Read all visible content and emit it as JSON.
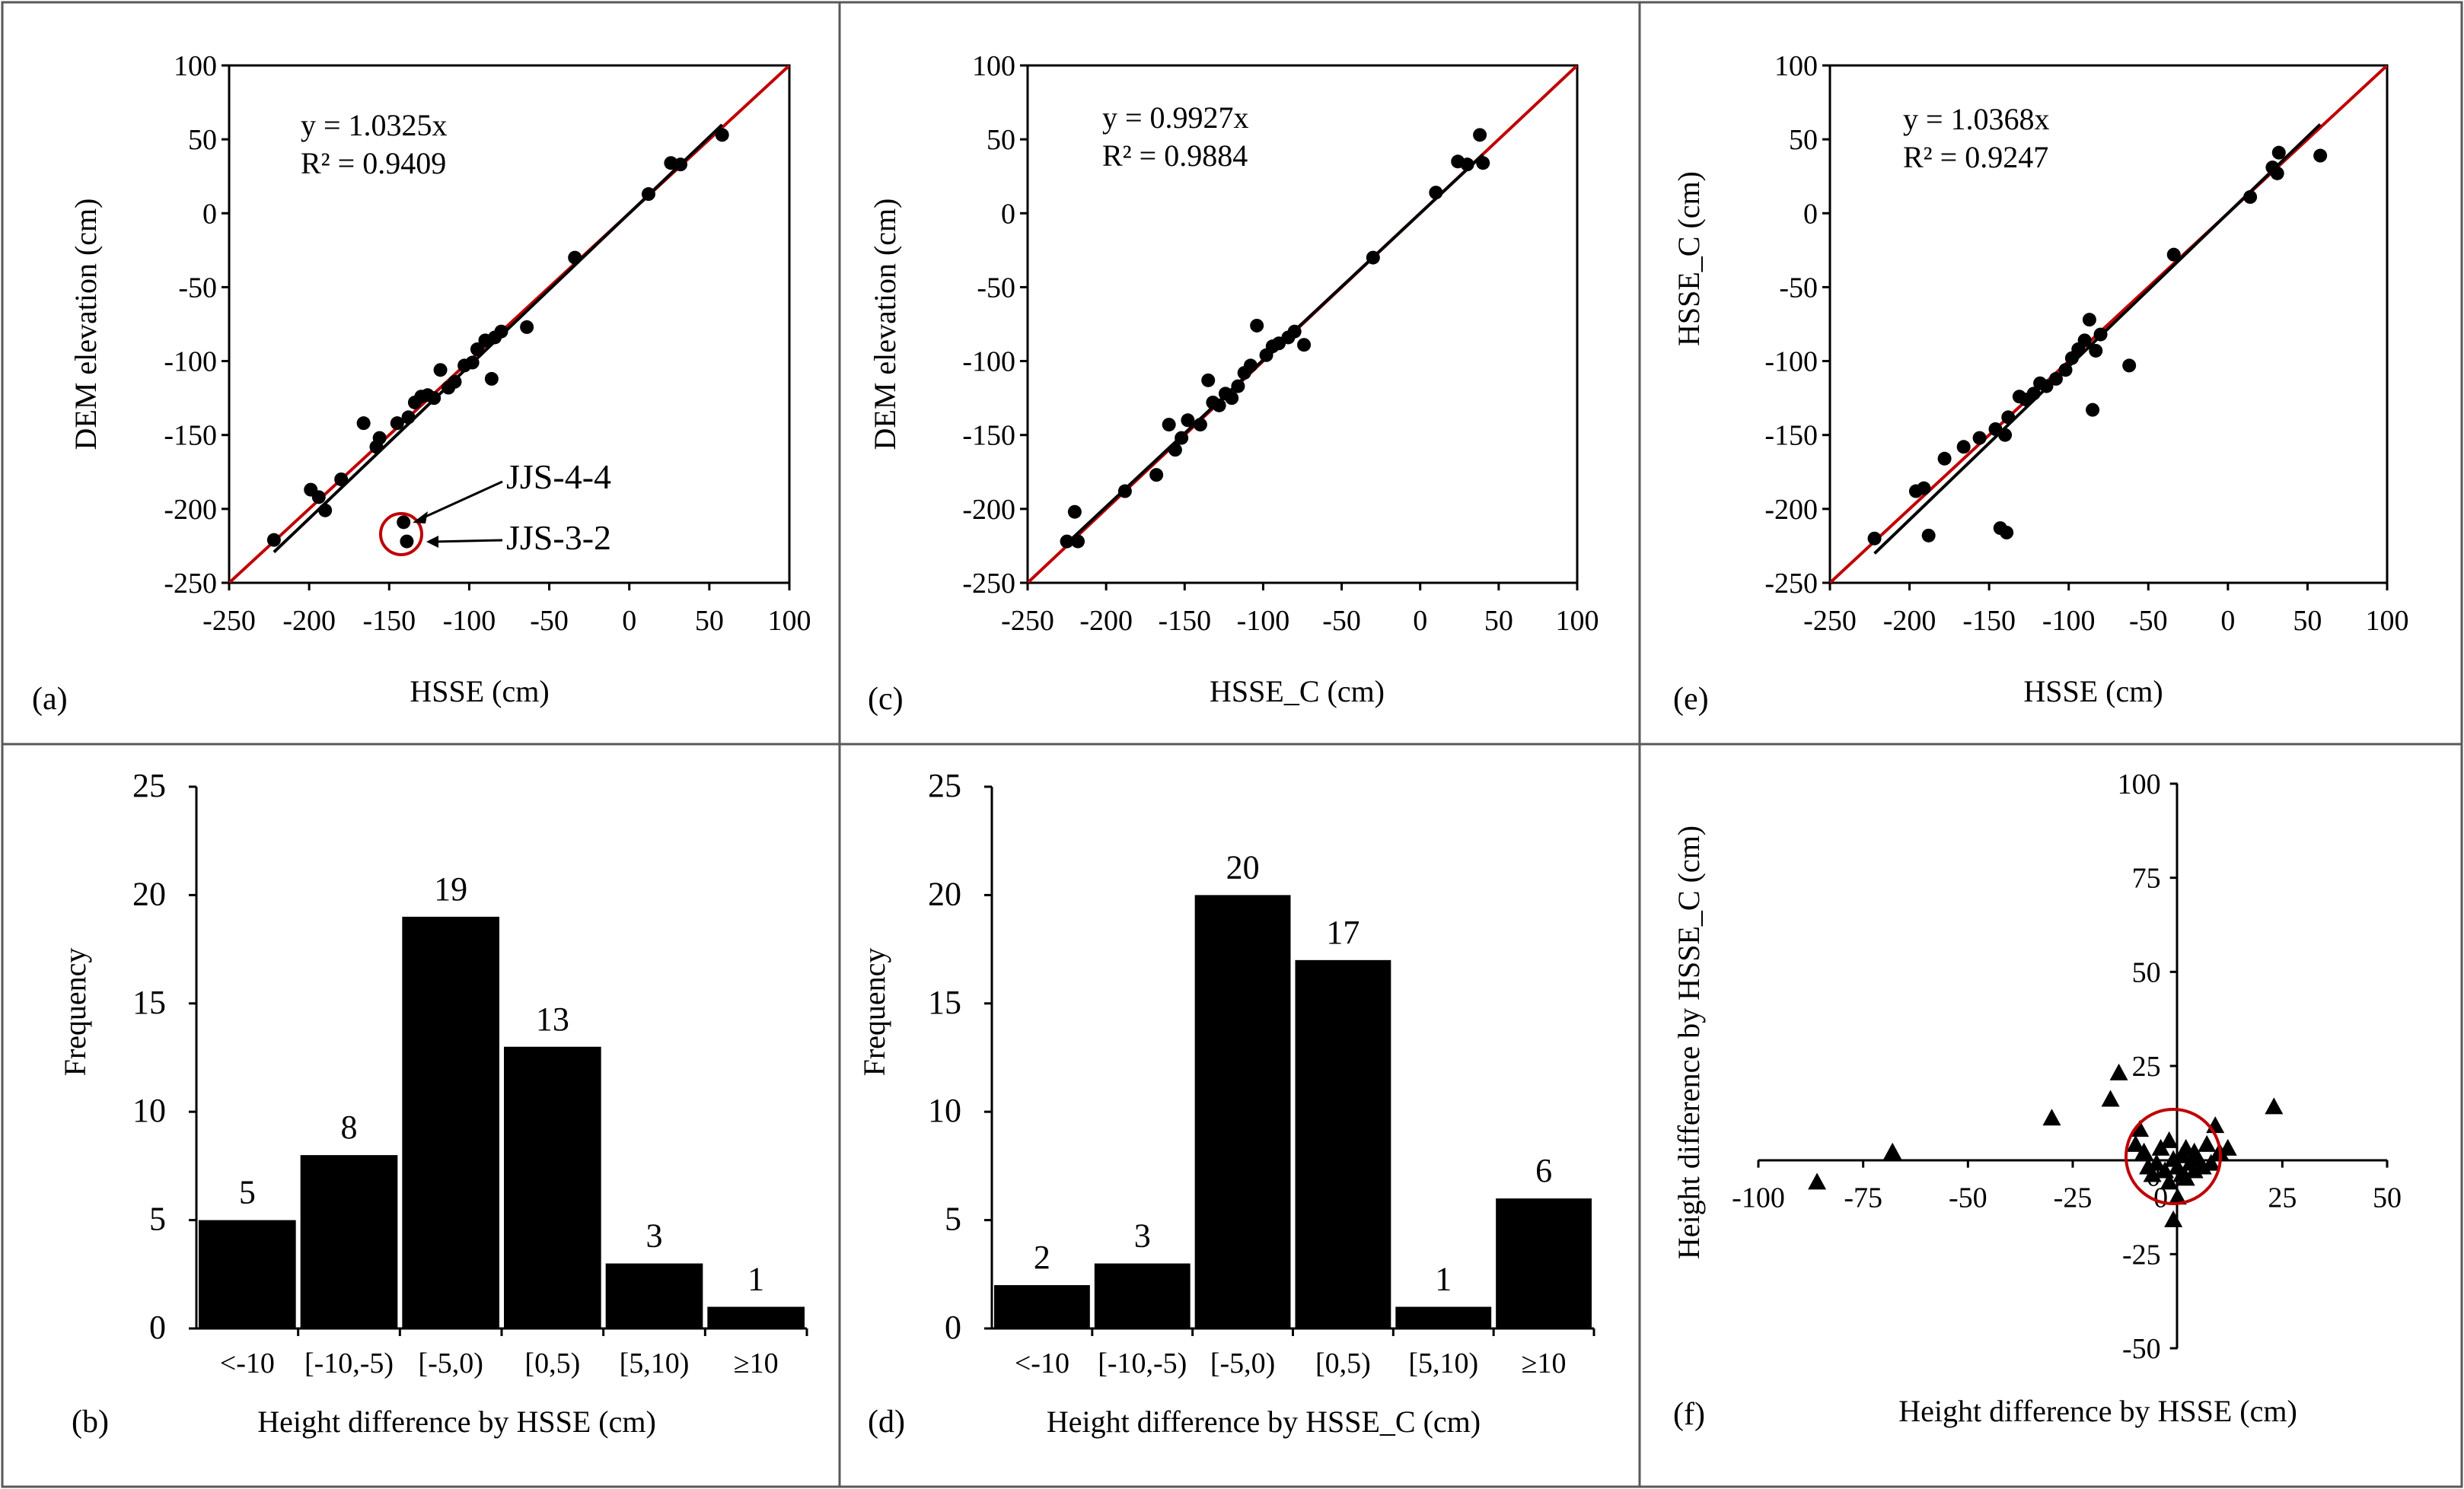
{
  "colors": {
    "fit_line": "#c00000",
    "trend_line": "#000000",
    "marker": "#000000",
    "bar": "#000000",
    "frame": "#595959",
    "highlight": "#c00000"
  },
  "chart_data": [
    {
      "id": "a",
      "panel_label": "(a)",
      "type": "scatter",
      "xlabel": "HSSE (cm)",
      "ylabel": "DEM elevation (cm)",
      "xlim": [
        -250,
        100
      ],
      "ylim": [
        -250,
        100
      ],
      "xticks": [
        "-250",
        "-200",
        "-150",
        "-100",
        "-50",
        "0",
        "50",
        "100"
      ],
      "yticks": [
        "-250",
        "-200",
        "-150",
        "-100",
        "-50",
        "0",
        "50",
        "100"
      ],
      "equation": "y = 1.0325x",
      "r2": "R² = 0.9409",
      "slope": 1.0325,
      "callouts": [
        "JJS-4-4",
        "JJS-3-2"
      ],
      "points": [
        [
          -222,
          -221
        ],
        [
          -199,
          -187
        ],
        [
          -194,
          -192
        ],
        [
          -190,
          -201
        ],
        [
          -180,
          -180
        ],
        [
          -166,
          -142
        ],
        [
          -158,
          -158
        ],
        [
          -156,
          -152
        ],
        [
          -145,
          -142
        ],
        [
          -141,
          -209
        ],
        [
          -139,
          -222
        ],
        [
          -138,
          -138
        ],
        [
          -134,
          -128
        ],
        [
          -130,
          -124
        ],
        [
          -126,
          -123
        ],
        [
          -122,
          -125
        ],
        [
          -118,
          -106
        ],
        [
          -113,
          -118
        ],
        [
          -109,
          -114
        ],
        [
          -103,
          -103
        ],
        [
          -98,
          -101
        ],
        [
          -95,
          -92
        ],
        [
          -90,
          -86
        ],
        [
          -86,
          -112
        ],
        [
          -84,
          -84
        ],
        [
          -80,
          -80
        ],
        [
          -64,
          -77
        ],
        [
          -34,
          -30
        ],
        [
          12,
          13
        ],
        [
          26,
          34
        ],
        [
          32,
          33
        ],
        [
          58,
          53
        ]
      ]
    },
    {
      "id": "c",
      "panel_label": "(c)",
      "type": "scatter",
      "xlabel": "HSSE_C (cm)",
      "ylabel": "DEM elevation (cm)",
      "xlim": [
        -250,
        100
      ],
      "ylim": [
        -250,
        100
      ],
      "xticks": [
        "-250",
        "-200",
        "-150",
        "-100",
        "-50",
        "0",
        "50",
        "100"
      ],
      "yticks": [
        "-250",
        "-200",
        "-150",
        "-100",
        "-50",
        "0",
        "50",
        "100"
      ],
      "equation": "y = 0.9927x",
      "r2": "R² = 0.9884",
      "slope": 0.9927,
      "points": [
        [
          -225,
          -222
        ],
        [
          -220,
          -202
        ],
        [
          -218,
          -222
        ],
        [
          -188,
          -188
        ],
        [
          -168,
          -177
        ],
        [
          -160,
          -143
        ],
        [
          -156,
          -160
        ],
        [
          -152,
          -152
        ],
        [
          -148,
          -140
        ],
        [
          -140,
          -143
        ],
        [
          -135,
          -113
        ],
        [
          -132,
          -128
        ],
        [
          -128,
          -130
        ],
        [
          -124,
          -122
        ],
        [
          -120,
          -125
        ],
        [
          -116,
          -117
        ],
        [
          -112,
          -108
        ],
        [
          -108,
          -103
        ],
        [
          -104,
          -76
        ],
        [
          -98,
          -96
        ],
        [
          -94,
          -90
        ],
        [
          -90,
          -88
        ],
        [
          -84,
          -84
        ],
        [
          -80,
          -80
        ],
        [
          -74,
          -89
        ],
        [
          -30,
          -30
        ],
        [
          10,
          14
        ],
        [
          24,
          35
        ],
        [
          30,
          33
        ],
        [
          38,
          53
        ],
        [
          40,
          34
        ]
      ]
    },
    {
      "id": "e",
      "panel_label": "(e)",
      "type": "scatter",
      "xlabel": "HSSE (cm)",
      "ylabel": "HSSE_C (cm)",
      "xlim": [
        -250,
        100
      ],
      "ylim": [
        -250,
        100
      ],
      "xticks": [
        "-250",
        "-200",
        "-150",
        "-100",
        "-50",
        "0",
        "50",
        "100"
      ],
      "yticks": [
        "-250",
        "-200",
        "-150",
        "-100",
        "-50",
        "0",
        "50",
        "100"
      ],
      "equation": "y = 1.0368x",
      "r2": "R² = 0.9247",
      "slope": 1.0368,
      "points": [
        [
          -222,
          -220
        ],
        [
          -196,
          -188
        ],
        [
          -191,
          -186
        ],
        [
          -188,
          -218
        ],
        [
          -178,
          -166
        ],
        [
          -166,
          -158
        ],
        [
          -156,
          -152
        ],
        [
          -146,
          -146
        ],
        [
          -143,
          -213
        ],
        [
          -140,
          -150
        ],
        [
          -139,
          -216
        ],
        [
          -138,
          -138
        ],
        [
          -131,
          -124
        ],
        [
          -127,
          -126
        ],
        [
          -122,
          -122
        ],
        [
          -118,
          -115
        ],
        [
          -114,
          -117
        ],
        [
          -108,
          -112
        ],
        [
          -102,
          -106
        ],
        [
          -98,
          -98
        ],
        [
          -94,
          -92
        ],
        [
          -90,
          -86
        ],
        [
          -87,
          -72
        ],
        [
          -85,
          -133
        ],
        [
          -83,
          -93
        ],
        [
          -80,
          -82
        ],
        [
          -62,
          -103
        ],
        [
          -34,
          -28
        ],
        [
          14,
          11
        ],
        [
          28,
          31
        ],
        [
          31,
          27
        ],
        [
          32,
          41
        ],
        [
          58,
          39
        ]
      ]
    },
    {
      "id": "b",
      "panel_label": "(b)",
      "type": "bar",
      "xlabel": "Height difference by HSSE (cm)",
      "ylabel": "Frequency",
      "ylim": [
        0,
        25
      ],
      "yticks": [
        "0",
        "5",
        "10",
        "15",
        "20",
        "25"
      ],
      "categories": [
        "<-10",
        "[-10,-5)",
        "[-5,0)",
        "[0,5)",
        "[5,10)",
        "≥10"
      ],
      "values": [
        5,
        8,
        19,
        13,
        3,
        1
      ],
      "value_labels": [
        "5",
        "8",
        "19",
        "13",
        "3",
        "1"
      ]
    },
    {
      "id": "d",
      "panel_label": "(d)",
      "type": "bar",
      "xlabel": "Height difference by HSSE_C (cm)",
      "ylabel": "Frequency",
      "ylim": [
        0,
        25
      ],
      "yticks": [
        "0",
        "5",
        "10",
        "15",
        "20",
        "25"
      ],
      "categories": [
        "<-10",
        "[-10,-5)",
        "[-5,0)",
        "[0,5)",
        "[5,10)",
        "≥10"
      ],
      "values": [
        2,
        3,
        20,
        17,
        1,
        6
      ],
      "value_labels": [
        "2",
        "3",
        "20",
        "17",
        "1",
        "6"
      ]
    },
    {
      "id": "f",
      "panel_label": "(f)",
      "type": "scatter",
      "xlabel": "Height difference by HSSE (cm)",
      "ylabel": "Height difference by HSSE_C (cm)",
      "xlim": [
        -100,
        50
      ],
      "ylim": [
        -50,
        100
      ],
      "xticks": [
        "-100",
        "-75",
        "-50",
        "-25",
        "0",
        "25",
        "50"
      ],
      "yticks": [
        "-50",
        "-25",
        "0",
        "25",
        "50",
        "75",
        "100"
      ],
      "marker": "triangle",
      "points": [
        [
          -86,
          -6
        ],
        [
          -68,
          2
        ],
        [
          -30,
          11
        ],
        [
          -16,
          16
        ],
        [
          -14,
          23
        ],
        [
          -10,
          4
        ],
        [
          -9,
          8
        ],
        [
          -8,
          2
        ],
        [
          -7,
          -2
        ],
        [
          -6,
          -4
        ],
        [
          -5,
          -1
        ],
        [
          -4,
          3
        ],
        [
          -3,
          -3
        ],
        [
          -2,
          5
        ],
        [
          -2,
          -6
        ],
        [
          -1,
          0
        ],
        [
          0,
          -2
        ],
        [
          0,
          -10
        ],
        [
          -1,
          -16
        ],
        [
          1,
          1
        ],
        [
          1,
          -4
        ],
        [
          2,
          3
        ],
        [
          2,
          -5
        ],
        [
          3,
          -1
        ],
        [
          4,
          2
        ],
        [
          4,
          -3
        ],
        [
          5,
          0
        ],
        [
          6,
          -2
        ],
        [
          7,
          4
        ],
        [
          8,
          -1
        ],
        [
          9,
          9
        ],
        [
          10,
          2
        ],
        [
          12,
          3
        ],
        [
          23,
          14
        ]
      ]
    }
  ]
}
